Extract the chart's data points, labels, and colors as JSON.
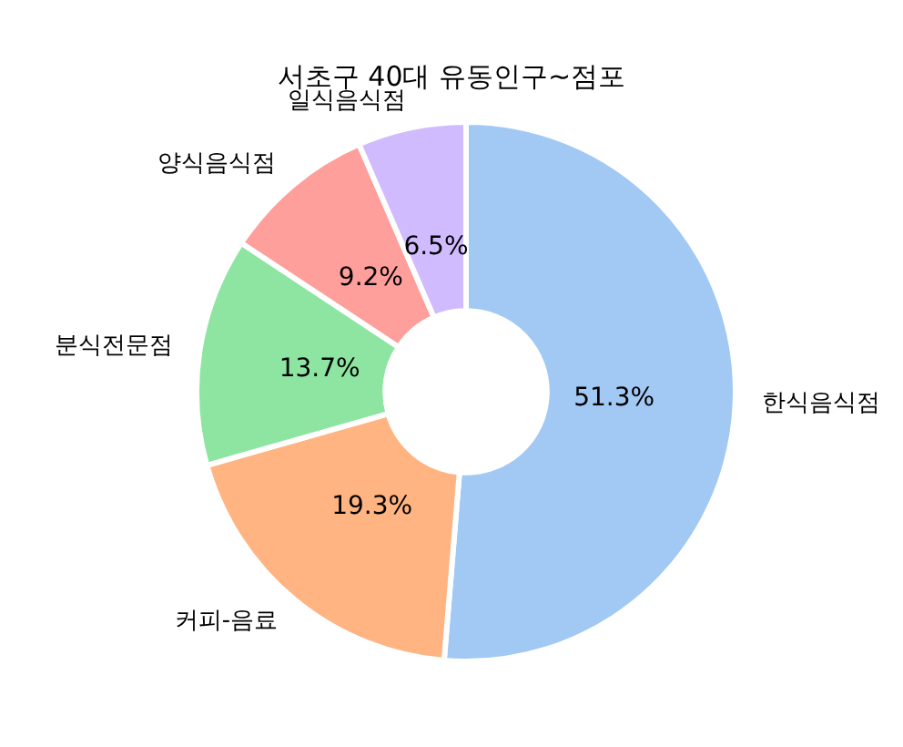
{
  "chart_data": {
    "type": "donut",
    "title": "서초구 40대 유동인구~점포",
    "categories": [
      "한식음식점",
      "커피-음료",
      "분식전문점",
      "양식음식점",
      "일식음식점"
    ],
    "values": [
      51.3,
      19.3,
      13.7,
      9.2,
      6.5
    ],
    "value_labels": [
      "51.3%",
      "19.3%",
      "13.7%",
      "9.2%",
      "6.5%"
    ],
    "colors": [
      "#a1c9f4",
      "#ffb482",
      "#8de5a1",
      "#ff9f9b",
      "#d0bbff"
    ]
  }
}
